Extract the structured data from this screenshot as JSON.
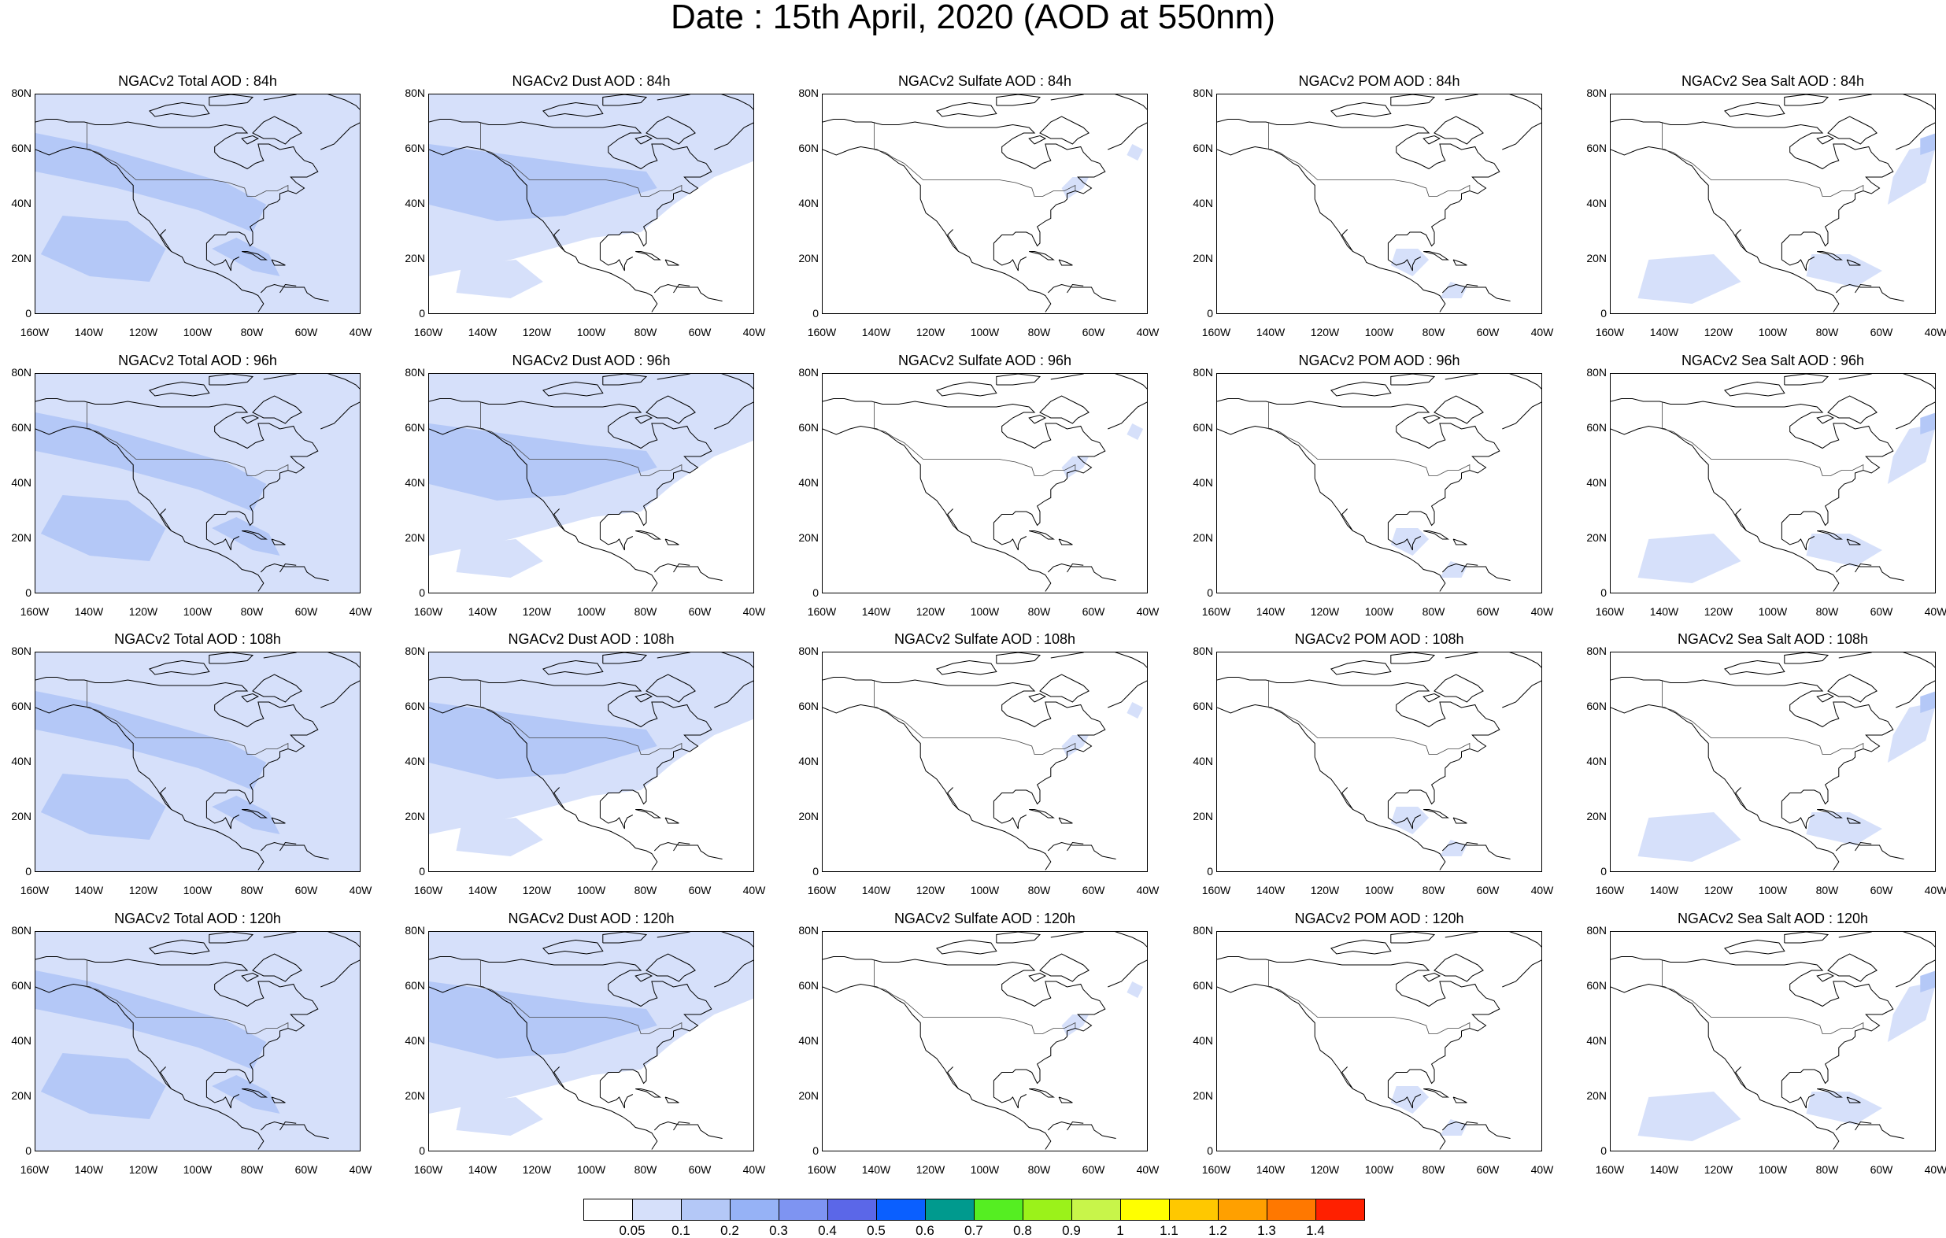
{
  "title": "Date : 15th April, 2020 (AOD at 550nm)",
  "map_extent": {
    "lon_range": [
      "160W",
      "40W"
    ],
    "lat_range": [
      "0",
      "80N"
    ]
  },
  "x_ticks": [
    "160W",
    "140W",
    "120W",
    "100W",
    "80W",
    "60W",
    "40W"
  ],
  "y_ticks": [
    "0",
    "20N",
    "40N",
    "60N",
    "80N"
  ],
  "panels": [
    {
      "title": "NGACv2 Total AOD : 84h",
      "field": "total",
      "hour": "84h"
    },
    {
      "title": "NGACv2 Dust AOD : 84h",
      "field": "dust",
      "hour": "84h"
    },
    {
      "title": "NGACv2 Sulfate AOD : 84h",
      "field": "sulfate",
      "hour": "84h"
    },
    {
      "title": "NGACv2 POM AOD : 84h",
      "field": "pom",
      "hour": "84h"
    },
    {
      "title": "NGACv2 Sea Salt AOD : 84h",
      "field": "seasalt",
      "hour": "84h"
    },
    {
      "title": "NGACv2 Total AOD : 96h",
      "field": "total",
      "hour": "96h"
    },
    {
      "title": "NGACv2 Dust AOD : 96h",
      "field": "dust",
      "hour": "96h"
    },
    {
      "title": "NGACv2 Sulfate AOD : 96h",
      "field": "sulfate",
      "hour": "96h"
    },
    {
      "title": "NGACv2 POM AOD : 96h",
      "field": "pom",
      "hour": "96h"
    },
    {
      "title": "NGACv2 Sea Salt AOD : 96h",
      "field": "seasalt",
      "hour": "96h"
    },
    {
      "title": "NGACv2 Total AOD : 108h",
      "field": "total",
      "hour": "108h"
    },
    {
      "title": "NGACv2 Dust AOD : 108h",
      "field": "dust",
      "hour": "108h"
    },
    {
      "title": "NGACv2 Sulfate AOD : 108h",
      "field": "sulfate",
      "hour": "108h"
    },
    {
      "title": "NGACv2 POM AOD : 108h",
      "field": "pom",
      "hour": "108h"
    },
    {
      "title": "NGACv2 Sea Salt AOD : 108h",
      "field": "seasalt",
      "hour": "108h"
    },
    {
      "title": "NGACv2 Total AOD : 120h",
      "field": "total",
      "hour": "120h"
    },
    {
      "title": "NGACv2 Dust AOD : 120h",
      "field": "dust",
      "hour": "120h"
    },
    {
      "title": "NGACv2 Sulfate AOD : 120h",
      "field": "sulfate",
      "hour": "120h"
    },
    {
      "title": "NGACv2 POM AOD : 120h",
      "field": "pom",
      "hour": "120h"
    },
    {
      "title": "NGACv2 Sea Salt  AOD : 120h",
      "field": "seasalt",
      "hour": "120h"
    }
  ],
  "colorbar": {
    "labels": [
      "0.05",
      "0.1",
      "0.2",
      "0.3",
      "0.4",
      "0.5",
      "0.6",
      "0.7",
      "0.8",
      "0.9",
      "1",
      "1.1",
      "1.2",
      "1.3",
      "1.4"
    ],
    "colors": [
      "#ffffff",
      "#d6e0fa",
      "#b4c8f7",
      "#96b2f6",
      "#7e94f2",
      "#5b67e8",
      "#0a5fff",
      "#009a8e",
      "#55ee22",
      "#9bf21a",
      "#c8f54a",
      "#ffff00",
      "#ffc800",
      "#ffa000",
      "#ff7800",
      "#ff2000"
    ]
  },
  "colors": {
    "light_blue": "#d6e0fa",
    "mid_blue": "#b4c8f7",
    "coast": "#000000"
  }
}
